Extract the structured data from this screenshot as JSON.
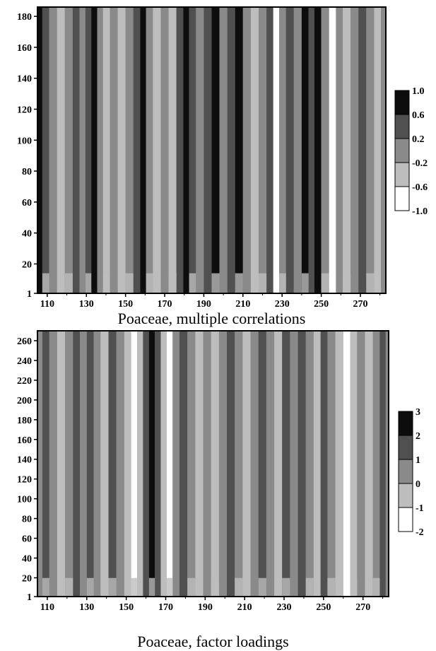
{
  "chart_data": [
    {
      "type": "heatmap",
      "title": "Poaceae, multiple correlations",
      "xlabel": "",
      "ylabel": "",
      "xlim": [
        105,
        283
      ],
      "ylim": [
        1,
        186
      ],
      "x_ticks": [
        110,
        130,
        150,
        170,
        190,
        210,
        230,
        250,
        270
      ],
      "y_ticks": [
        1,
        20,
        40,
        60,
        80,
        100,
        120,
        140,
        160,
        180
      ],
      "legend": {
        "placement": "right",
        "levels": [
          "1.0",
          "0.6",
          "0.2",
          "-0.2",
          "-0.6",
          "-1.0"
        ],
        "colors": [
          "#0d0d0d",
          "#505050",
          "#8a8a8a",
          "#bdbdbd",
          "#ffffff"
        ]
      },
      "columns": [
        {
          "x": 106,
          "level": 0
        },
        {
          "x": 109,
          "level": 1
        },
        {
          "x": 113,
          "level": 2
        },
        {
          "x": 117,
          "level": 3
        },
        {
          "x": 121,
          "level": 2
        },
        {
          "x": 125,
          "level": 1
        },
        {
          "x": 128,
          "level": 2
        },
        {
          "x": 131,
          "level": 1
        },
        {
          "x": 134,
          "level": 0
        },
        {
          "x": 137,
          "level": 2
        },
        {
          "x": 140,
          "level": 3
        },
        {
          "x": 144,
          "level": 2
        },
        {
          "x": 148,
          "level": 3
        },
        {
          "x": 152,
          "level": 2
        },
        {
          "x": 156,
          "level": 1
        },
        {
          "x": 159,
          "level": 0
        },
        {
          "x": 162,
          "level": 2
        },
        {
          "x": 166,
          "level": 3
        },
        {
          "x": 170,
          "level": 2
        },
        {
          "x": 174,
          "level": 3
        },
        {
          "x": 178,
          "level": 1
        },
        {
          "x": 181,
          "level": 0
        },
        {
          "x": 184,
          "level": 1
        },
        {
          "x": 188,
          "level": 2
        },
        {
          "x": 192,
          "level": 1
        },
        {
          "x": 196,
          "level": 0
        },
        {
          "x": 200,
          "level": 2
        },
        {
          "x": 204,
          "level": 1
        },
        {
          "x": 208,
          "level": 0
        },
        {
          "x": 212,
          "level": 2
        },
        {
          "x": 216,
          "level": 3
        },
        {
          "x": 220,
          "level": 2
        },
        {
          "x": 224,
          "level": 1
        },
        {
          "x": 227,
          "level": 4
        },
        {
          "x": 230,
          "level": 2
        },
        {
          "x": 234,
          "level": 1
        },
        {
          "x": 238,
          "level": 2
        },
        {
          "x": 242,
          "level": 0
        },
        {
          "x": 245,
          "level": 1
        },
        {
          "x": 248,
          "level": 0
        },
        {
          "x": 252,
          "level": 2
        },
        {
          "x": 256,
          "level": 4
        },
        {
          "x": 259,
          "level": 2
        },
        {
          "x": 263,
          "level": 3
        },
        {
          "x": 267,
          "level": 2
        },
        {
          "x": 271,
          "level": 1
        },
        {
          "x": 275,
          "level": 2
        },
        {
          "x": 279,
          "level": 3
        },
        {
          "x": 282,
          "level": 2
        }
      ]
    },
    {
      "type": "heatmap",
      "title": "Poaceae, factor loadings",
      "xlabel": "",
      "ylabel": "",
      "xlim": [
        105,
        283
      ],
      "ylim": [
        1,
        270
      ],
      "x_ticks": [
        110,
        130,
        150,
        170,
        190,
        210,
        230,
        250,
        270
      ],
      "y_ticks": [
        1,
        20,
        40,
        60,
        80,
        100,
        120,
        140,
        160,
        180,
        200,
        220,
        240,
        260
      ],
      "legend": {
        "placement": "right",
        "levels": [
          "3",
          "2",
          "1",
          "0",
          "-1",
          "-2"
        ],
        "colors": [
          "#0d0d0d",
          "#505050",
          "#8a8a8a",
          "#bdbdbd",
          "#ffffff"
        ]
      },
      "columns": [
        {
          "x": 106,
          "level": 2
        },
        {
          "x": 109,
          "level": 1
        },
        {
          "x": 113,
          "level": 2
        },
        {
          "x": 117,
          "level": 3
        },
        {
          "x": 121,
          "level": 2
        },
        {
          "x": 125,
          "level": 1
        },
        {
          "x": 128,
          "level": 2
        },
        {
          "x": 132,
          "level": 1
        },
        {
          "x": 135,
          "level": 2
        },
        {
          "x": 139,
          "level": 3
        },
        {
          "x": 143,
          "level": 1
        },
        {
          "x": 147,
          "level": 2
        },
        {
          "x": 151,
          "level": 3
        },
        {
          "x": 154,
          "level": 4
        },
        {
          "x": 157,
          "level": 3
        },
        {
          "x": 160,
          "level": 1
        },
        {
          "x": 163,
          "level": 0
        },
        {
          "x": 166,
          "level": 1
        },
        {
          "x": 169,
          "level": 3
        },
        {
          "x": 172,
          "level": 4
        },
        {
          "x": 175,
          "level": 2
        },
        {
          "x": 179,
          "level": 1
        },
        {
          "x": 183,
          "level": 2
        },
        {
          "x": 187,
          "level": 3
        },
        {
          "x": 191,
          "level": 2
        },
        {
          "x": 195,
          "level": 3
        },
        {
          "x": 199,
          "level": 2
        },
        {
          "x": 203,
          "level": 1
        },
        {
          "x": 207,
          "level": 2
        },
        {
          "x": 211,
          "level": 3
        },
        {
          "x": 215,
          "level": 2
        },
        {
          "x": 219,
          "level": 1
        },
        {
          "x": 223,
          "level": 2
        },
        {
          "x": 227,
          "level": 3
        },
        {
          "x": 231,
          "level": 1
        },
        {
          "x": 235,
          "level": 2
        },
        {
          "x": 239,
          "level": 1
        },
        {
          "x": 243,
          "level": 2
        },
        {
          "x": 247,
          "level": 3
        },
        {
          "x": 250,
          "level": 1
        },
        {
          "x": 254,
          "level": 2
        },
        {
          "x": 258,
          "level": 3
        },
        {
          "x": 262,
          "level": 4
        },
        {
          "x": 265,
          "level": 3
        },
        {
          "x": 269,
          "level": 2
        },
        {
          "x": 273,
          "level": 3
        },
        {
          "x": 277,
          "level": 2
        },
        {
          "x": 280,
          "level": 1
        },
        {
          "x": 283,
          "level": 2
        }
      ]
    }
  ]
}
